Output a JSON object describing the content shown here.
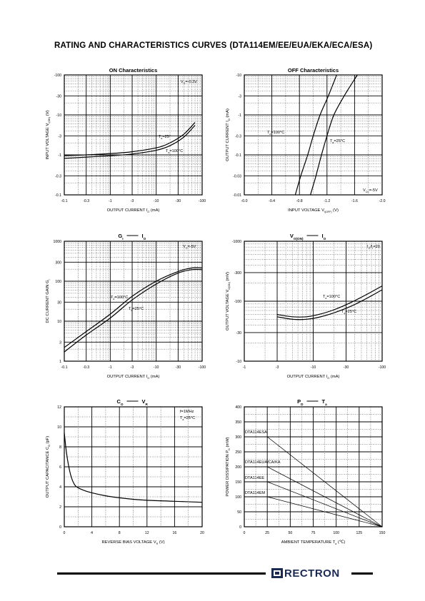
{
  "page": {
    "title": "RATING AND CHARACTERISTICS CURVES",
    "part_numbers": "(DTA114EM/EE/EUA/EKA/ECA/ESA)",
    "logo_text": "RECTRON",
    "logo_color": "#1a2a55"
  },
  "chart_data": [
    {
      "id": "on",
      "type": "line",
      "title": "ON Characteristics",
      "xlabel": "OUTPUT CURRENT",
      "xlabel_sym": "I",
      "xlabel_sub": "O",
      "xlabel_unit": "(mA)",
      "ylabel": "INPUT VOLTAGE",
      "ylabel_sym": "V",
      "ylabel_sub": "I(ON)",
      "ylabel_unit": "(V)",
      "xscale": "log",
      "yscale": "log",
      "x_ticks": [
        "-0.1",
        "-0.3",
        "-1",
        "-3",
        "-10",
        "-30",
        "-100"
      ],
      "y_ticks": [
        "-100",
        "-30",
        "-10",
        "-3",
        "-1",
        "-0.3",
        "-0.1"
      ],
      "annotations": [
        {
          "text": "V",
          "sub": "O",
          "rest": "=-0.3V"
        },
        {
          "text": "T",
          "sub": "a",
          "rest": "=25°"
        },
        {
          "text": "T",
          "sub": "a",
          "rest": "=100°C"
        }
      ],
      "series": [
        {
          "label_index": 1,
          "x": [
            -0.1,
            -0.3,
            -1,
            -3,
            -10,
            -20,
            -40,
            -70
          ],
          "y": [
            -0.95,
            -1.0,
            -1.08,
            -1.2,
            -1.5,
            -2.0,
            -3.3,
            -6.5
          ]
        },
        {
          "label_index": 2,
          "x": [
            -0.1,
            -0.3,
            -1,
            -3,
            -10,
            -20,
            -40,
            -70
          ],
          "y": [
            -0.82,
            -0.88,
            -0.95,
            -1.05,
            -1.3,
            -1.7,
            -2.8,
            -5.5
          ]
        }
      ]
    },
    {
      "id": "off",
      "type": "line",
      "title": "OFF Characteristics",
      "xlabel": "INPUT VOLTAGE",
      "xlabel_sym": "V",
      "xlabel_sub": "I(OFF)",
      "xlabel_unit": "(V)",
      "ylabel": "OUTPUT CURRENT",
      "ylabel_sym": "I",
      "ylabel_sub": "O",
      "ylabel_unit": "(mA)",
      "xscale": "linear",
      "yscale": "log",
      "x_ticks": [
        "-0.0",
        "-0.4",
        "-0.8",
        "-1.2",
        "-1.6",
        "-2.0"
      ],
      "y_ticks": [
        "-10",
        "-3",
        "-1",
        "-0.3",
        "-0.1",
        "-0.03",
        "-0.01"
      ],
      "annotations": [
        {
          "text": "T",
          "sub": "a",
          "rest": "=100°C"
        },
        {
          "text": "T",
          "sub": "a",
          "rest": "=25°C"
        },
        {
          "text": "V",
          "sub": "CC",
          "rest": "=-5V"
        }
      ],
      "series": [
        {
          "label_index": 0,
          "x": [
            -0.74,
            -0.82,
            -0.92,
            -1.0,
            -1.1,
            -1.22,
            -1.34
          ],
          "y": [
            -0.01,
            -0.03,
            -0.1,
            -0.3,
            -1,
            -3,
            -10
          ]
        },
        {
          "label_index": 1,
          "x": [
            -0.96,
            -1.04,
            -1.12,
            -1.2,
            -1.3,
            -1.45,
            -1.64
          ],
          "y": [
            -0.01,
            -0.03,
            -0.1,
            -0.3,
            -1,
            -3,
            -10
          ]
        }
      ]
    },
    {
      "id": "gain",
      "type": "line",
      "title_parts": {
        "a": "G",
        "a_sub": "I",
        "b": "I",
        "b_sub": "O"
      },
      "xlabel": "OUTPUT CURRENT",
      "xlabel_sym": "I",
      "xlabel_sub": "O",
      "xlabel_unit": "(mA)",
      "ylabel": "DC CURRENT GAIN",
      "ylabel_sym": "G",
      "ylabel_sub": "I",
      "ylabel_unit": "",
      "xscale": "log",
      "yscale": "log",
      "x_ticks": [
        "-0.1",
        "-0.3",
        "-1",
        "-3",
        "-10",
        "-30",
        "-100"
      ],
      "y_ticks": [
        "1000",
        "300",
        "100",
        "30",
        "10",
        "3",
        "1"
      ],
      "annotations": [
        {
          "text": "V",
          "sub": "O",
          "rest": "=-5V"
        },
        {
          "text": "T",
          "sub": "a",
          "rest": "=100°C"
        },
        {
          "text": "T",
          "sub": "a",
          "rest": "=25°C"
        }
      ],
      "series": [
        {
          "label_index": 1,
          "x": [
            -0.1,
            -0.3,
            -1,
            -3,
            -10,
            -30,
            -60,
            -100
          ],
          "y": [
            2.2,
            5.5,
            15,
            42,
            100,
            175,
            215,
            215
          ]
        },
        {
          "label_index": 2,
          "x": [
            -0.1,
            -0.3,
            -1,
            -3,
            -10,
            -30,
            -60,
            -100
          ],
          "y": [
            1.7,
            4.5,
            12,
            34,
            85,
            160,
            195,
            195
          ]
        }
      ]
    },
    {
      "id": "vo",
      "type": "line",
      "title_parts": {
        "a": "V",
        "a_sub": "O(ON)",
        "b": "I",
        "b_sub": "O"
      },
      "xlabel": "OUTPUT CURRENT",
      "xlabel_sym": "I",
      "xlabel_sub": "O",
      "xlabel_unit": "(mA)",
      "ylabel": "OUTPUT VOLTAGE",
      "ylabel_sym": "V",
      "ylabel_sub": "O(ON)",
      "ylabel_unit": "(mV)",
      "xscale": "log",
      "yscale": "log",
      "x_ticks": [
        "-1",
        "-3",
        "-10",
        "-30",
        "-100"
      ],
      "y_ticks": [
        "-1000",
        "-300",
        "-100",
        "-30",
        "-10"
      ],
      "annotations": [
        {
          "text": "I",
          "sub": "O",
          "rest": "/I",
          "sub2": "I",
          "rest2": "=20"
        },
        {
          "text": "T",
          "sub": "a",
          "rest": "=100°C"
        },
        {
          "text": "T",
          "sub": "a",
          "rest": "=25°C"
        }
      ],
      "series": [
        {
          "label_index": 1,
          "x": [
            -3,
            -5,
            -8,
            -12,
            -20,
            -35,
            -60,
            -100
          ],
          "y": [
            -60,
            -55,
            -55,
            -60,
            -72,
            -95,
            -130,
            -180
          ]
        },
        {
          "label_index": 2,
          "x": [
            -3,
            -5,
            -8,
            -12,
            -20,
            -35,
            -60,
            -100
          ],
          "y": [
            -55,
            -50,
            -50,
            -54,
            -64,
            -82,
            -112,
            -155
          ]
        }
      ]
    },
    {
      "id": "cap",
      "type": "line",
      "title_parts": {
        "a": "C",
        "a_sub": "O",
        "b": "V",
        "b_sub": "R"
      },
      "xlabel": "REVERSE BIAS VOLTAGE",
      "xlabel_sym": "V",
      "xlabel_sub": "R",
      "xlabel_unit": "(V)",
      "ylabel": "OUTPUT CAPACITANCE",
      "ylabel_sym": "C",
      "ylabel_sub": "O",
      "ylabel_unit": "(pF)",
      "xscale": "linear",
      "yscale": "linear",
      "xlim": [
        0,
        20
      ],
      "ylim": [
        0,
        12
      ],
      "x_ticks": [
        "0",
        "4",
        "8",
        "12",
        "16",
        "20"
      ],
      "y_ticks": [
        "12",
        "10",
        "8",
        "6",
        "4",
        "2",
        "0"
      ],
      "annotations": [
        {
          "text": "f=1MHz",
          "sub": "",
          "rest": ""
        },
        {
          "text": "T",
          "sub": "a",
          "rest": "=25°C"
        }
      ],
      "series": [
        {
          "x": [
            0,
            0.3,
            0.6,
            1.0,
            1.5,
            2,
            3,
            4,
            6,
            8,
            10,
            12,
            16,
            20
          ],
          "y": [
            9.4,
            7.5,
            6.2,
            5.0,
            4.2,
            3.9,
            3.6,
            3.4,
            3.1,
            2.9,
            2.75,
            2.65,
            2.55,
            2.45
          ]
        }
      ]
    },
    {
      "id": "pd",
      "type": "line",
      "title_parts": {
        "a": "P",
        "a_sub": "D",
        "b": "T",
        "b_sub": "a"
      },
      "xlabel": "AMBIENT TEMPERATURE",
      "xlabel_sym": "T",
      "xlabel_sub": "a",
      "xlabel_unit": "(℃)",
      "ylabel": "POWER DISSIPATION",
      "ylabel_sym": "P",
      "ylabel_sub": "D",
      "ylabel_unit": "(mW)",
      "xscale": "linear",
      "yscale": "linear",
      "xlim": [
        0,
        150
      ],
      "ylim": [
        0,
        400
      ],
      "x_ticks": [
        "0",
        "25",
        "50",
        "75",
        "100",
        "125",
        "150"
      ],
      "y_ticks": [
        "400",
        "350",
        "300",
        "250",
        "200",
        "150",
        "100",
        "50",
        "0"
      ],
      "series": [
        {
          "name": "DTA114ESA",
          "x": [
            25,
            150
          ],
          "y": [
            300,
            0
          ]
        },
        {
          "name": "DTA114EUA/CA/KA",
          "x": [
            25,
            150
          ],
          "y": [
            200,
            0
          ]
        },
        {
          "name": "DTA114EE",
          "x": [
            25,
            150
          ],
          "y": [
            150,
            0
          ]
        },
        {
          "name": "DTA114EM",
          "x": [
            25,
            150
          ],
          "y": [
            100,
            0
          ]
        }
      ]
    }
  ]
}
